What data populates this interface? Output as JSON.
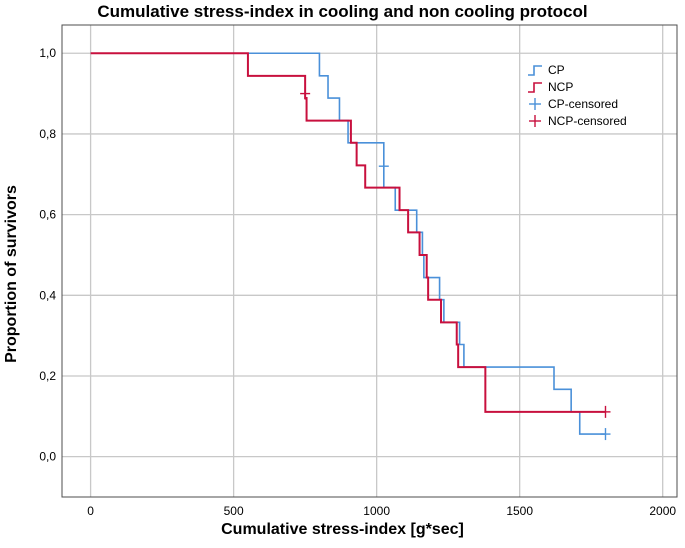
{
  "chart_data": {
    "type": "line",
    "chart_kind": "Kaplan-Meier step survival curve",
    "title": "Cumulative stress-index in cooling and non cooling protocol",
    "xlabel": "Cumulative stress-index [g*sec]",
    "ylabel": "Proportion of survivors",
    "xlim": [
      -100,
      2050
    ],
    "ylim": [
      -0.1,
      1.07
    ],
    "x_ticks": [
      0,
      500,
      1000,
      1500,
      2000
    ],
    "y_ticks": [
      0.0,
      0.2,
      0.4,
      0.6,
      0.8,
      1.0
    ],
    "y_tick_labels": [
      "0,0",
      "0,2",
      "0,4",
      "0,6",
      "0,8",
      "1,0"
    ],
    "grid": true,
    "legend_position": "top-right",
    "series": [
      {
        "name": "CP",
        "color": "#4a90d9",
        "step_points": [
          [
            0,
            1.0
          ],
          [
            800,
            1.0
          ],
          [
            800,
            0.944
          ],
          [
            830,
            0.944
          ],
          [
            830,
            0.889
          ],
          [
            870,
            0.889
          ],
          [
            870,
            0.833
          ],
          [
            900,
            0.833
          ],
          [
            900,
            0.778
          ],
          [
            1025,
            0.778
          ],
          [
            1025,
            0.667
          ],
          [
            1065,
            0.667
          ],
          [
            1065,
            0.611
          ],
          [
            1140,
            0.611
          ],
          [
            1140,
            0.556
          ],
          [
            1160,
            0.556
          ],
          [
            1160,
            0.5
          ],
          [
            1165,
            0.5
          ],
          [
            1165,
            0.444
          ],
          [
            1220,
            0.444
          ],
          [
            1220,
            0.389
          ],
          [
            1235,
            0.389
          ],
          [
            1235,
            0.333
          ],
          [
            1290,
            0.333
          ],
          [
            1290,
            0.278
          ],
          [
            1305,
            0.278
          ],
          [
            1305,
            0.222
          ],
          [
            1620,
            0.222
          ],
          [
            1620,
            0.167
          ],
          [
            1680,
            0.167
          ],
          [
            1680,
            0.111
          ],
          [
            1710,
            0.111
          ],
          [
            1710,
            0.056
          ],
          [
            1800,
            0.056
          ]
        ],
        "censored": [
          [
            1025,
            0.72
          ],
          [
            1800,
            0.056
          ]
        ]
      },
      {
        "name": "NCP",
        "color": "#c8103e",
        "step_points": [
          [
            0,
            1.0
          ],
          [
            550,
            1.0
          ],
          [
            550,
            0.944
          ],
          [
            750,
            0.944
          ],
          [
            750,
            0.889
          ],
          [
            755,
            0.889
          ],
          [
            755,
            0.833
          ],
          [
            910,
            0.833
          ],
          [
            910,
            0.778
          ],
          [
            930,
            0.778
          ],
          [
            930,
            0.722
          ],
          [
            960,
            0.722
          ],
          [
            960,
            0.667
          ],
          [
            1080,
            0.667
          ],
          [
            1080,
            0.611
          ],
          [
            1110,
            0.611
          ],
          [
            1110,
            0.556
          ],
          [
            1150,
            0.556
          ],
          [
            1150,
            0.5
          ],
          [
            1175,
            0.5
          ],
          [
            1175,
            0.444
          ],
          [
            1180,
            0.444
          ],
          [
            1180,
            0.389
          ],
          [
            1225,
            0.389
          ],
          [
            1225,
            0.333
          ],
          [
            1280,
            0.333
          ],
          [
            1280,
            0.278
          ],
          [
            1285,
            0.278
          ],
          [
            1285,
            0.222
          ],
          [
            1380,
            0.222
          ],
          [
            1380,
            0.111
          ],
          [
            1800,
            0.111
          ]
        ],
        "censored": [
          [
            750,
            0.9
          ],
          [
            1800,
            0.111
          ]
        ]
      }
    ],
    "legend": [
      {
        "label": "CP",
        "kind": "line",
        "color": "#4a90d9"
      },
      {
        "label": "NCP",
        "kind": "line",
        "color": "#c8103e"
      },
      {
        "label": "CP-censored",
        "kind": "cross",
        "color": "#4a90d9"
      },
      {
        "label": "NCP-censored",
        "kind": "cross",
        "color": "#c8103e"
      }
    ]
  }
}
